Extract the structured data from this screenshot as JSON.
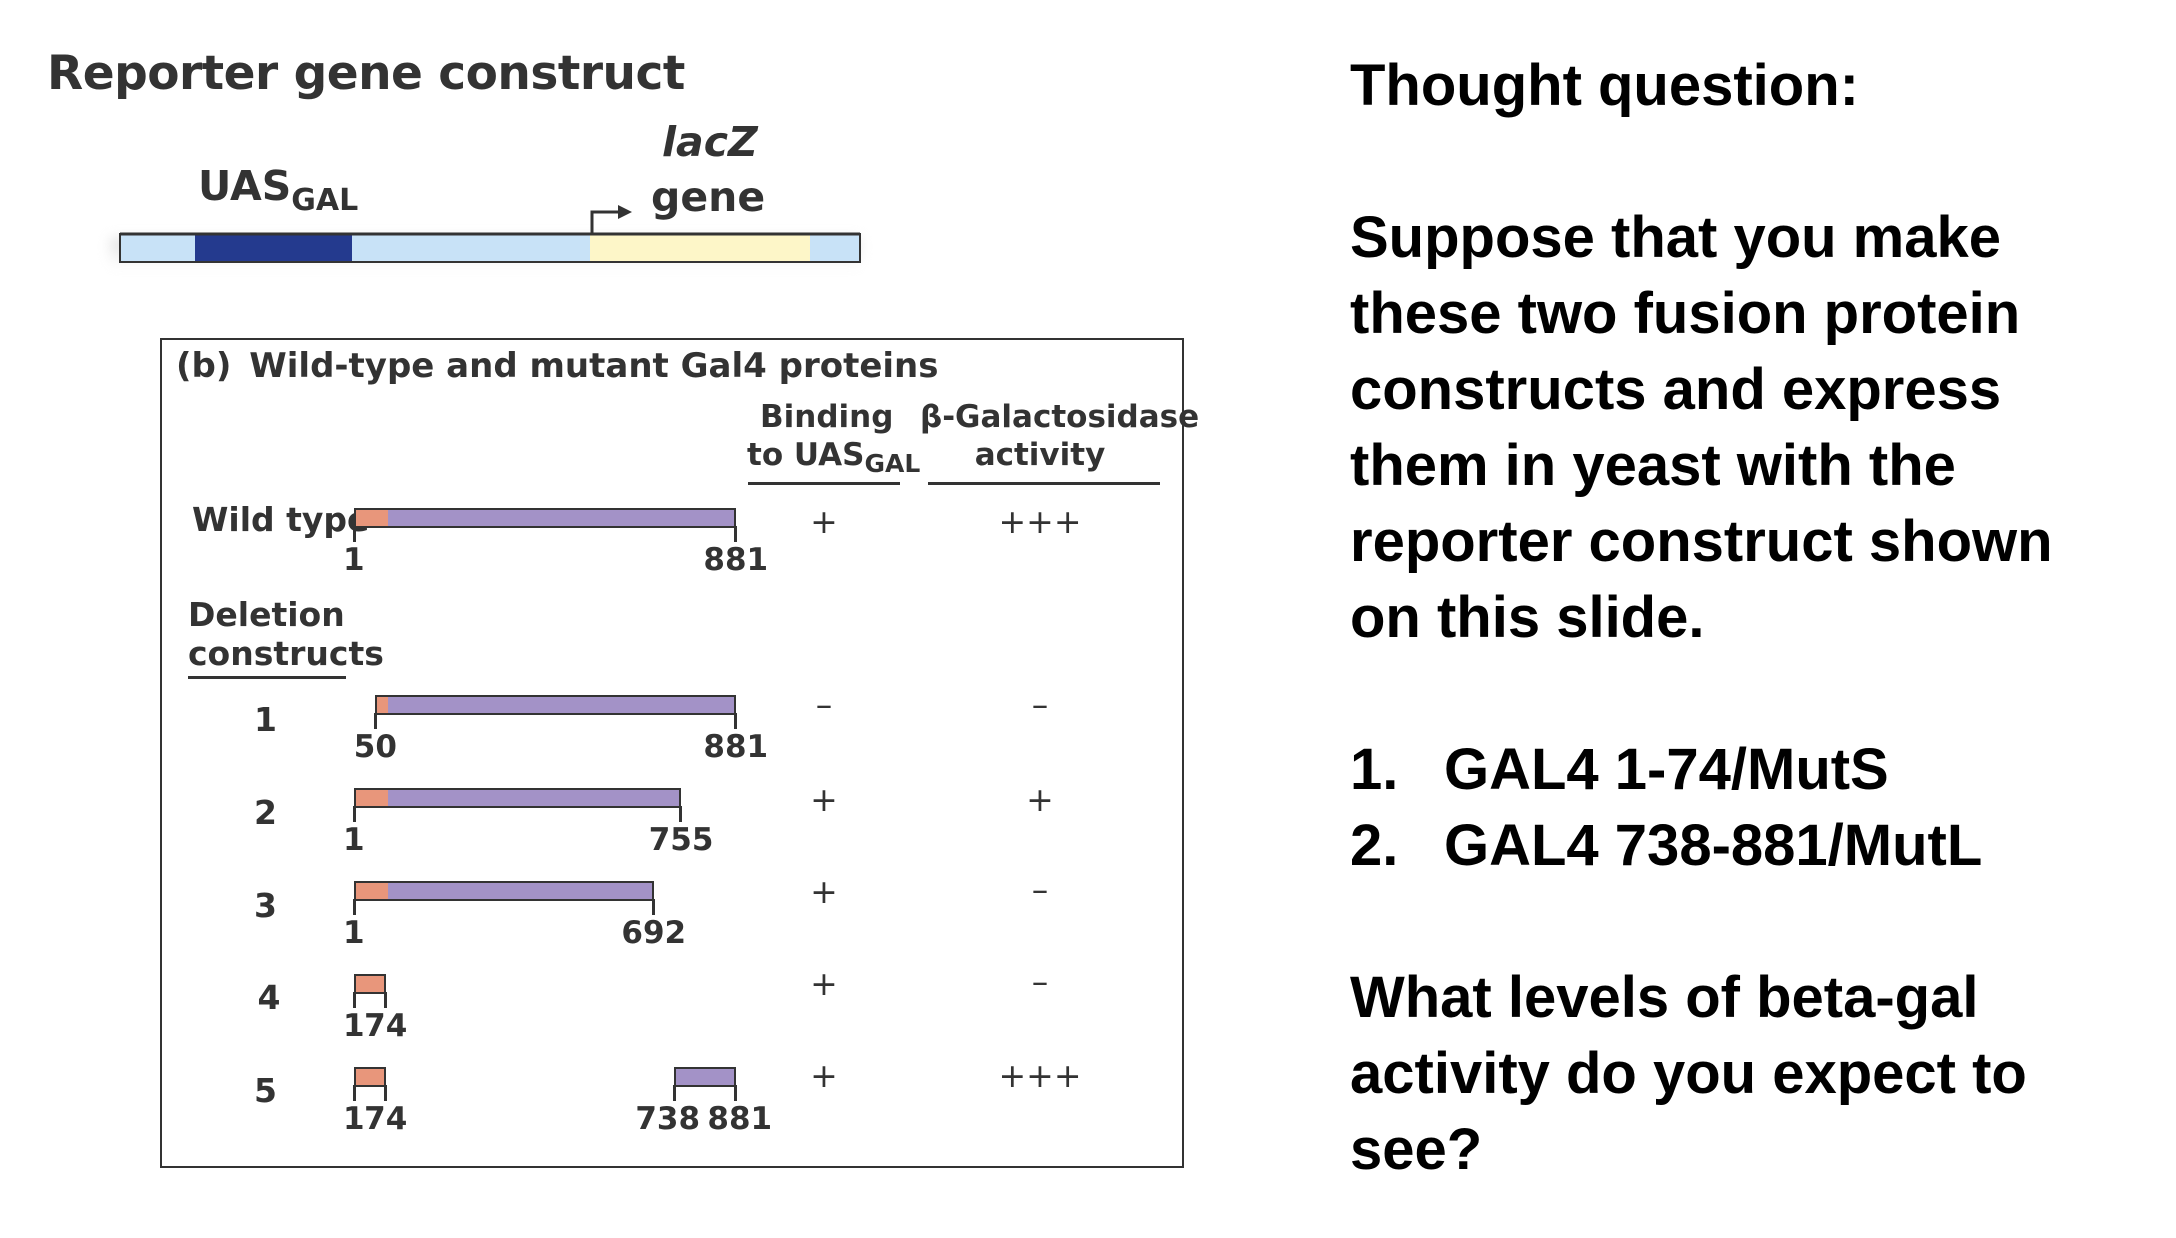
{
  "reporter": {
    "title": "Reporter gene construct",
    "uas_label": "UAS",
    "uas_sub": "GAL",
    "lacz_label": "lacZ",
    "gene_label": "gene",
    "colors": {
      "dna_light": "#c8e2f7",
      "uas": "#243a8e",
      "lacz": "#fdf6c8",
      "line": "#333333"
    }
  },
  "figure_b": {
    "title_prefix": "(b)",
    "title": "Wild-type and mutant Gal4 proteins",
    "col_binding_line1": "Binding",
    "col_binding_line2": "to UAS",
    "col_binding_sub": "GAL",
    "col_activity_line1": "β-Galactosidase",
    "col_activity_line2": "activity",
    "deletion_label_line1": "Deletion",
    "deletion_label_line2": "constructs",
    "rows": [
      {
        "label": "Wild type",
        "start": 1,
        "end": 881,
        "start_label": "1",
        "end_label": "881",
        "binding": "+",
        "activity": "+++"
      },
      {
        "label": "1",
        "start": 50,
        "end": 881,
        "start_label": "50",
        "end_label": "881",
        "binding": "–",
        "activity": "–"
      },
      {
        "label": "2",
        "start": 1,
        "end": 755,
        "start_label": "1",
        "end_label": "755",
        "binding": "+",
        "activity": "+"
      },
      {
        "label": "3",
        "start": 1,
        "end": 692,
        "start_label": "1",
        "end_label": "692",
        "binding": "+",
        "activity": "–"
      },
      {
        "label": "4",
        "start": 1,
        "end": 74,
        "start_label": "1",
        "end_label": "74",
        "binding": "+",
        "activity": "–"
      },
      {
        "label": "5",
        "start": 1,
        "end": 74,
        "start_label": "1",
        "end_label": "74",
        "extra_start_label": "738",
        "extra_end_label": "881",
        "binding": "+",
        "activity": "+++"
      }
    ],
    "colors": {
      "dbd": "#e8967b",
      "protein": "#a392c7",
      "border": "#333333"
    }
  },
  "question": {
    "heading": "Thought question:",
    "para_lines": [
      "Suppose that you make",
      "these two fusion protein",
      "constructs and express",
      "them in yeast with the",
      "reporter construct shown",
      "on this slide."
    ],
    "items": [
      {
        "number": "1.",
        "text": "GAL4 1-74/MutS"
      },
      {
        "number": "2.",
        "text": "GAL4 738-881/MutL"
      }
    ],
    "closing_lines": [
      "What levels of beta-gal",
      "activity do you expect to",
      "see?"
    ]
  }
}
